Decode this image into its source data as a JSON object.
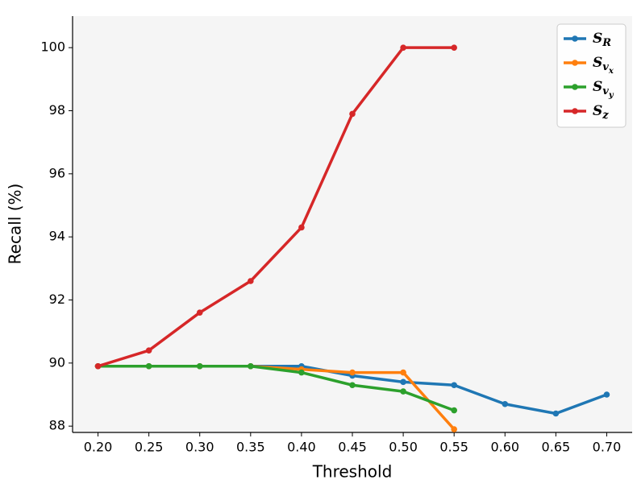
{
  "chart_data": {
    "type": "line",
    "x_label": "Threshold",
    "y_label": "Recall (%)",
    "x": [
      0.2,
      0.25,
      0.3,
      0.35,
      0.4,
      0.45,
      0.5,
      0.55,
      0.6,
      0.65,
      0.7
    ],
    "series": [
      {
        "name": "S_R",
        "color": "#1f77b4",
        "values": [
          89.9,
          89.9,
          89.9,
          89.9,
          89.9,
          89.6,
          89.4,
          89.3,
          88.7,
          88.4,
          89.0
        ]
      },
      {
        "name": "S_v_x",
        "color": "#ff7f0e",
        "values": [
          89.9,
          89.9,
          89.9,
          89.9,
          89.8,
          89.7,
          89.7,
          87.9,
          null,
          null,
          null
        ]
      },
      {
        "name": "S_v_y",
        "color": "#2ca02c",
        "values": [
          89.9,
          89.9,
          89.9,
          89.9,
          89.7,
          89.3,
          89.1,
          88.5,
          null,
          null,
          null
        ]
      },
      {
        "name": "S_z",
        "color": "#d62728",
        "values": [
          89.9,
          90.4,
          91.6,
          92.6,
          94.3,
          97.9,
          100,
          100,
          null,
          null,
          null
        ]
      }
    ],
    "xlim": [
      0.175,
      0.725
    ],
    "xticks": [
      {
        "value": 0.2,
        "label": "0.20"
      },
      {
        "value": 0.25,
        "label": "0.25"
      },
      {
        "value": 0.3,
        "label": "0.30"
      },
      {
        "value": 0.35,
        "label": "0.35"
      },
      {
        "value": 0.4,
        "label": "0.40"
      },
      {
        "value": 0.45,
        "label": "0.45"
      },
      {
        "value": 0.5,
        "label": "0.50"
      },
      {
        "value": 0.55,
        "label": "0.55"
      },
      {
        "value": 0.6,
        "label": "0.60"
      },
      {
        "value": 0.65,
        "label": "0.65"
      },
      {
        "value": 0.7,
        "label": "0.70"
      }
    ],
    "ylim": [
      87.8,
      101.0
    ],
    "yticks": [
      88,
      90,
      92,
      94,
      96,
      98,
      100
    ],
    "legend": "upper right",
    "background": "#f5f5f5"
  }
}
